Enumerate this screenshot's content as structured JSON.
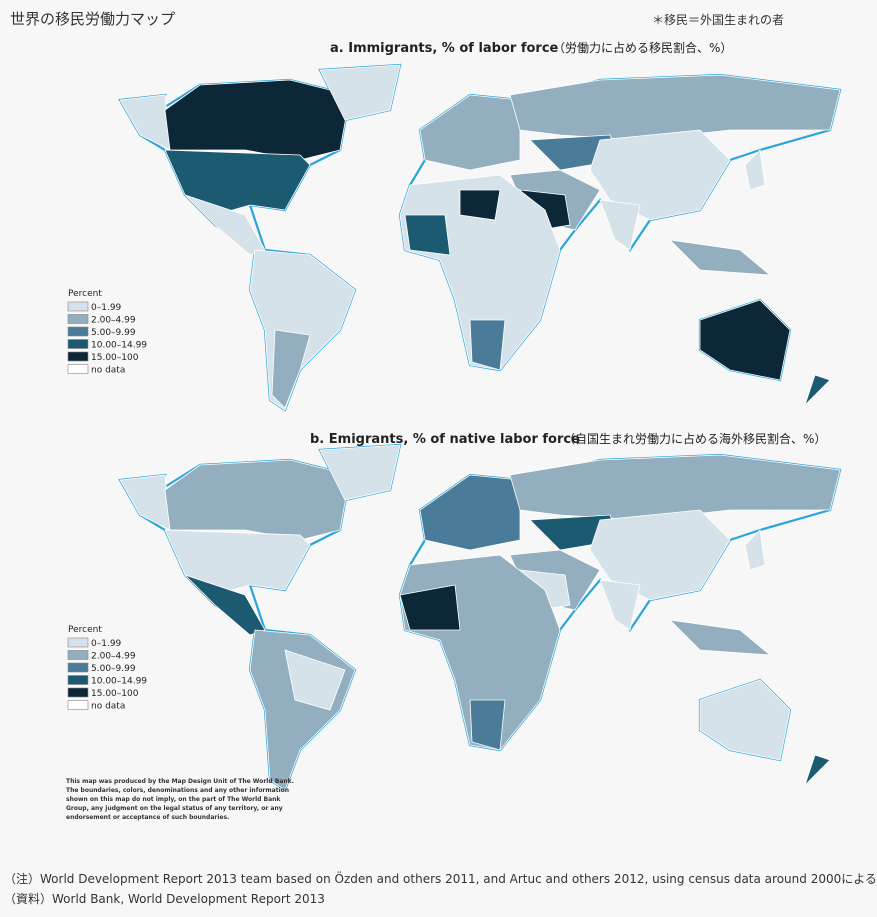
{
  "header": {
    "title": "世界の移民労働力マップ",
    "note": "＊移民＝外国生まれの者"
  },
  "maps": [
    {
      "title": "a. Immigrants, % of labor force",
      "subtitle": "（労働力に占める移民割合、%）",
      "legend_title": "Percent",
      "legend": [
        {
          "label": "0–1.99",
          "color": "#d6e2ea"
        },
        {
          "label": "2.00–4.99",
          "color": "#93aebf"
        },
        {
          "label": "5.00–9.99",
          "color": "#4a7c9a"
        },
        {
          "label": "10.00–14.99",
          "color": "#1c5a72"
        },
        {
          "label": "15.00–100",
          "color": "#0c2838"
        },
        {
          "label": "no data",
          "color": "#ffffff"
        }
      ]
    },
    {
      "title": "b. Emigrants, % of native labor force",
      "subtitle": "（自国生まれ労働力に占める海外移民割合、%）",
      "legend_title": "Percent",
      "legend": [
        {
          "label": "0–1.99",
          "color": "#d6e2ea"
        },
        {
          "label": "2.00–4.99",
          "color": "#93aebf"
        },
        {
          "label": "5.00–9.99",
          "color": "#4a7c9a"
        },
        {
          "label": "10.00–14.99",
          "color": "#1c5a72"
        },
        {
          "label": "15.00–100",
          "color": "#0c2838"
        },
        {
          "label": "no data",
          "color": "#ffffff"
        }
      ]
    }
  ],
  "disclaimer": [
    "This map was produced by the Map Design Unit of The World Bank.",
    "The boundaries, colors, denominations and any other information",
    "shown on this map do not imply, on the part of The World Bank",
    "Group, any judgment on the legal status of any territory, or any",
    "endorsement or acceptance of such boundaries."
  ],
  "footer": {
    "notes": [
      "（注）World Development Report 2013 team based on Özden and others 2011, and Artuc and others 2012, using census data around 2000による",
      "（資料）World Bank, World Development Report 2013"
    ]
  }
}
